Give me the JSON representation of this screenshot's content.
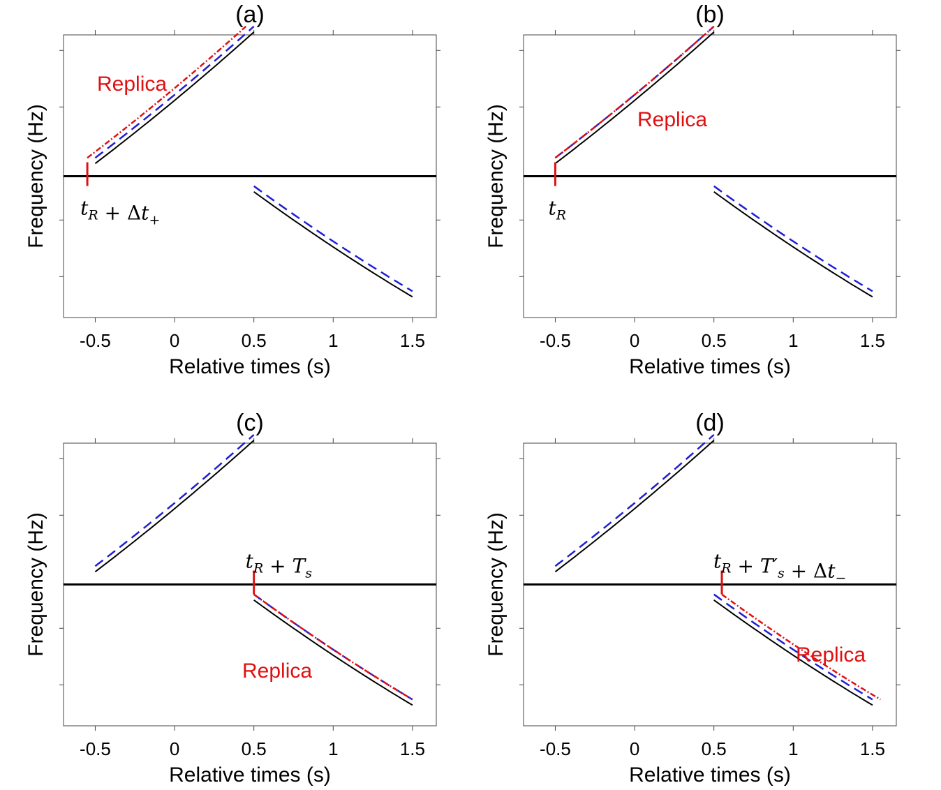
{
  "chart_data": [
    {
      "panel": "(a)",
      "type": "line",
      "title": "(a)",
      "xlabel": "Relative times (s)",
      "ylabel": "Frequency (Hz)",
      "xticks": [
        "-0.5",
        "0",
        "0.5",
        "1",
        "1.5"
      ],
      "xlim": [
        -0.7,
        1.65
      ],
      "grid": false,
      "replica_label": "Replica",
      "replica_segment": "up",
      "marker": {
        "t": -0.55,
        "label": "t_R + Δt_+",
        "label_position": "below-right"
      }
    },
    {
      "panel": "(b)",
      "type": "line",
      "title": "(b)",
      "xlabel": "Relative times (s)",
      "ylabel": "Frequency (Hz)",
      "xticks": [
        "-0.5",
        "0",
        "0.5",
        "1",
        "1.5"
      ],
      "xlim": [
        -0.7,
        1.65
      ],
      "grid": false,
      "replica_label": "Replica",
      "replica_segment": "up",
      "marker": {
        "t": -0.5,
        "label": "t_R",
        "label_position": "below-right"
      }
    },
    {
      "panel": "(c)",
      "type": "line",
      "title": "(c)",
      "xlabel": "Relative times (s)",
      "ylabel": "Frequency (Hz)",
      "xticks": [
        "-0.5",
        "0",
        "0.5",
        "1",
        "1.5"
      ],
      "xlim": [
        -0.7,
        1.65
      ],
      "grid": false,
      "replica_label": "Replica",
      "replica_segment": "down",
      "marker": {
        "t": 0.5,
        "label": "t_R + T_s",
        "label_position": "above-right"
      }
    },
    {
      "panel": "(d)",
      "type": "line",
      "title": "(d)",
      "xlabel": "Relative times (s)",
      "ylabel": "Frequency (Hz)",
      "xticks": [
        "-0.5",
        "0",
        "0.5",
        "1",
        "1.5"
      ],
      "xlim": [
        -0.7,
        1.65
      ],
      "grid": false,
      "replica_label": "Replica",
      "replica_segment": "down",
      "marker": {
        "t": 0.55,
        "label": "t_R + T′_s + Δt_−",
        "label_position": "above-right"
      }
    }
  ],
  "colors": {
    "signal": "#000000",
    "doppler": "#1f1fd6",
    "replica": "#e01010",
    "zero_line": "#000000"
  }
}
